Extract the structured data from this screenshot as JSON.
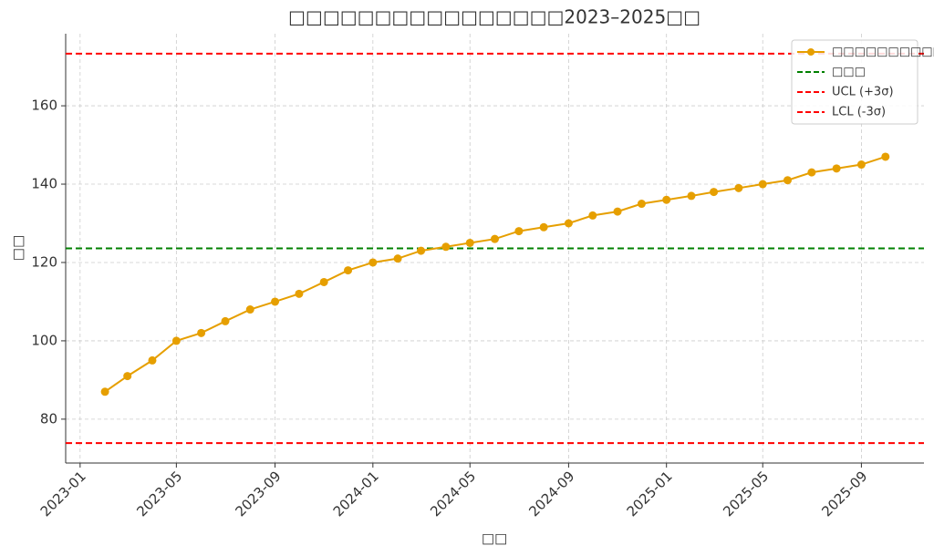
{
  "chart_data": {
    "type": "line",
    "title": "□□□□□□□□□□□□□□□□2023–2025□□",
    "x_label": "□□",
    "y_label": "□□",
    "x": [
      "2023-02",
      "2023-03",
      "2023-04",
      "2023-05",
      "2023-06",
      "2023-07",
      "2023-08",
      "2023-09",
      "2023-10",
      "2023-11",
      "2023-12",
      "2024-01",
      "2024-02",
      "2024-03",
      "2024-04",
      "2024-05",
      "2024-06",
      "2024-07",
      "2024-08",
      "2024-09",
      "2024-10",
      "2024-11",
      "2024-12",
      "2025-01",
      "2025-02",
      "2025-03",
      "2025-04",
      "2025-05",
      "2025-06",
      "2025-07",
      "2025-08",
      "2025-09",
      "2025-10"
    ],
    "series": [
      {
        "name": "□□□□□□□□□□",
        "color": "#e69f00",
        "values": [
          87,
          91,
          95,
          100,
          102,
          105,
          108,
          110,
          112,
          115,
          118,
          120,
          121,
          123,
          124,
          125,
          126,
          128,
          129,
          130,
          132,
          133,
          135,
          136,
          137,
          138,
          139,
          140,
          141,
          143,
          144,
          145,
          147
        ]
      }
    ],
    "hlines": [
      {
        "name": "□□□",
        "value": 123.6,
        "color": "#008000"
      },
      {
        "name": "UCL (+3σ)",
        "value": 173.3,
        "color": "#ff0000"
      },
      {
        "name": "LCL (-3σ)",
        "value": 73.9,
        "color": "#ff0000"
      }
    ],
    "xlim": [
      "2022-12-14",
      "2025-11-18"
    ],
    "xticks": [
      "2023-01",
      "2023-05",
      "2023-09",
      "2024-01",
      "2024-05",
      "2024-09",
      "2025-01",
      "2025-05",
      "2025-09"
    ],
    "ylim": [
      68.8,
      178.4
    ],
    "yticks": [
      80,
      100,
      120,
      140,
      160
    ],
    "grid": true,
    "legend": "upper right"
  }
}
